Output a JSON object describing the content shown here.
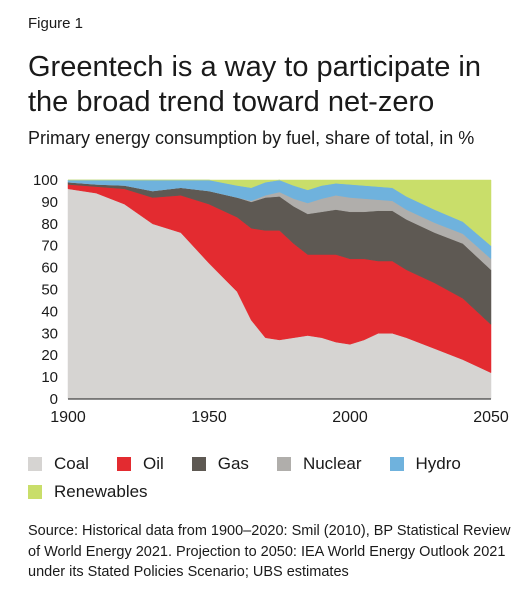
{
  "figure_label": "Figure 1",
  "title": "Greentech is a way to participate in the broad trend toward net-zero",
  "subtitle": "Primary energy consumption by fuel, share of total, in %",
  "source": "Source: Historical data from 1900–2020: Smil (2010), BP Statistical Review of World Energy 2021. Projection to 2050: IEA World Energy Outlook 2021 under its Stated Policies Scenario; UBS estimates",
  "chart_data": {
    "type": "area",
    "stacked": true,
    "title": "Primary energy consumption by fuel, share of total, in %",
    "xlim": [
      1900,
      2050
    ],
    "ylim": [
      0,
      100
    ],
    "x_ticks": [
      "1900",
      "1950",
      "2000",
      "2050"
    ],
    "y_ticks": [
      "0",
      "10",
      "20",
      "30",
      "40",
      "50",
      "60",
      "70",
      "80",
      "90",
      "100"
    ],
    "grid": false,
    "legend_position": "bottom",
    "x": [
      1900,
      1910,
      1920,
      1930,
      1940,
      1950,
      1960,
      1965,
      1970,
      1975,
      1980,
      1985,
      1990,
      1995,
      2000,
      2005,
      2010,
      2015,
      2020,
      2030,
      2040,
      2050
    ],
    "series": [
      {
        "name": "Coal",
        "color": "#d6d4d2",
        "values": [
          96,
          94,
          89,
          80,
          76,
          62,
          49,
          36,
          28,
          27,
          28,
          29,
          28,
          26,
          25,
          27,
          30,
          30,
          28,
          23,
          18,
          12
        ]
      },
      {
        "name": "Oil",
        "color": "#e32b30",
        "values": [
          2,
          3,
          7,
          12,
          17,
          27,
          34,
          42,
          49,
          50,
          43,
          37,
          38,
          40,
          39,
          37,
          33,
          33,
          31,
          30,
          28,
          22
        ]
      },
      {
        "name": "Gas",
        "color": "#5e5953",
        "values": [
          1,
          1,
          1.5,
          3,
          3.5,
          6,
          9,
          12,
          15,
          15.5,
          17,
          18.5,
          19.5,
          20.5,
          21.5,
          21.5,
          23,
          23,
          23,
          23,
          25,
          25
        ]
      },
      {
        "name": "Nuclear",
        "color": "#b0aeab",
        "values": [
          0,
          0,
          0,
          0,
          0,
          0,
          0,
          0.5,
          1,
          2,
          3.5,
          5,
          6,
          6.5,
          6.5,
          6,
          5,
          4.5,
          4.5,
          4.5,
          4.5,
          5
        ]
      },
      {
        "name": "Hydro",
        "color": "#6fb2dd",
        "values": [
          1,
          2,
          2.5,
          5,
          3.5,
          5,
          5.5,
          6,
          6,
          5.5,
          6,
          6,
          6,
          5.5,
          6,
          6,
          6,
          6,
          6,
          6,
          5.5,
          6
        ]
      },
      {
        "name": "Renewables",
        "color": "#c9de6a",
        "values": [
          0,
          0,
          0,
          0,
          0,
          0,
          2.5,
          3.5,
          1,
          0,
          2.5,
          4.5,
          2.5,
          1.5,
          2,
          2.5,
          3,
          3.5,
          7.5,
          13.5,
          19,
          30
        ]
      }
    ]
  }
}
